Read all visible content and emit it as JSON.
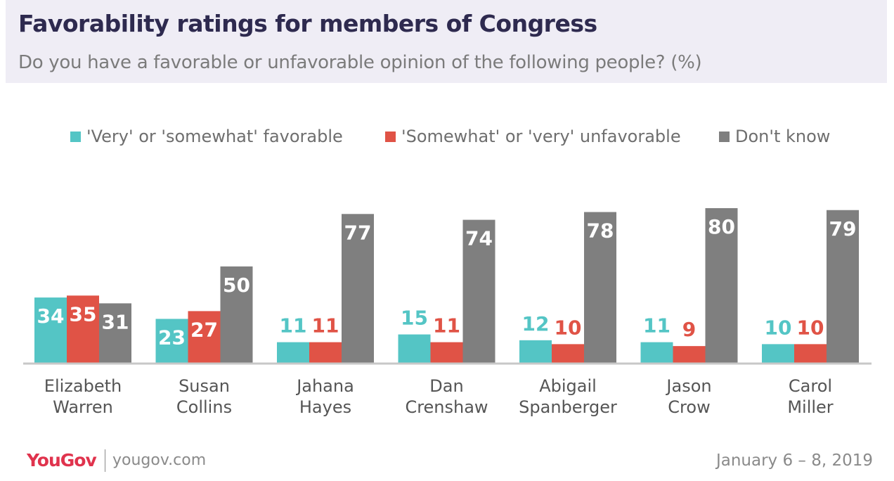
{
  "chart_data": {
    "type": "bar",
    "title": "Favorability ratings for members of Congress",
    "subtitle": "Do you have a favorable or unfavorable opinion of the following people? (%)",
    "categories": [
      [
        "Elizabeth",
        "Warren"
      ],
      [
        "Susan",
        "Collins"
      ],
      [
        "Jahana",
        "Hayes"
      ],
      [
        "Dan",
        "Crenshaw"
      ],
      [
        "Abigail",
        "Spanberger"
      ],
      [
        "Jason",
        "Crow"
      ],
      [
        "Carol",
        "Miller"
      ]
    ],
    "series": [
      {
        "name": "'Very' or 'somewhat' favorable",
        "color": "#54c5c5",
        "values": [
          34,
          23,
          11,
          15,
          12,
          11,
          10
        ]
      },
      {
        "name": "'Somewhat' or 'very' unfavorable",
        "color": "#e05346",
        "values": [
          35,
          27,
          11,
          11,
          10,
          9,
          10
        ]
      },
      {
        "name": "Don't know",
        "color": "#7f7f7f",
        "values": [
          31,
          50,
          77,
          74,
          78,
          80,
          79
        ]
      }
    ],
    "ylim": [
      0,
      80
    ],
    "grid": false,
    "legend": "top"
  },
  "footer": {
    "logo": "YouGov",
    "site": "yougov.com",
    "date": "January 6 – 8, 2019"
  }
}
